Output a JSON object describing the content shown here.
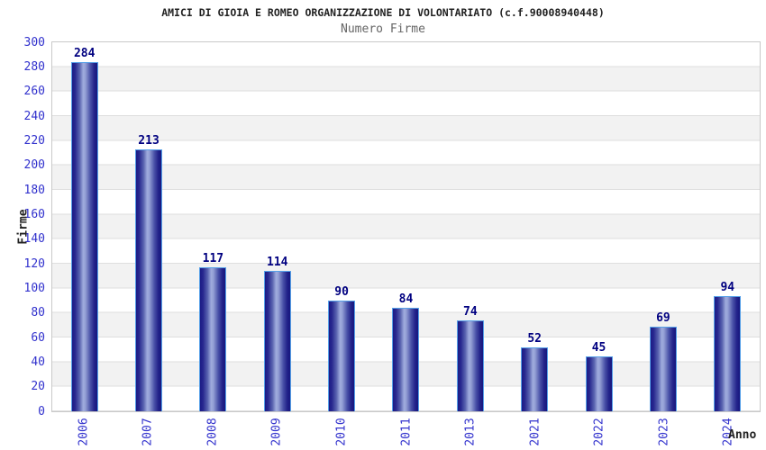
{
  "title": "AMICI DI GIOIA E ROMEO ORGANIZZAZIONE DI VOLONTARIATO (c.f.90008940448)",
  "subtitle": "Numero Firme",
  "chart_data": {
    "type": "bar",
    "title": "AMICI DI GIOIA E ROMEO ORGANIZZAZIONE DI VOLONTARIATO (c.f.90008940448)",
    "subtitle": "Numero Firme",
    "categories": [
      "2006",
      "2007",
      "2008",
      "2009",
      "2010",
      "2011",
      "2013",
      "2021",
      "2022",
      "2023",
      "2024"
    ],
    "values": [
      284,
      213,
      117,
      114,
      90,
      84,
      74,
      52,
      45,
      69,
      94
    ],
    "xlabel": "Anno",
    "ylabel": "Firme",
    "ylim": [
      0,
      300
    ],
    "ytick_step": 20,
    "grid": true,
    "legend_position": "none",
    "bar_value_labels_shown": true,
    "colors": {
      "tick_label": "#3232cd",
      "value_label": "#000080",
      "subtitle_text": "#666666",
      "band_stripe": "#f2f2f2",
      "gridline": "#dedede",
      "plot_border": "#c9c9c9",
      "bar_edge": "#56a0e8",
      "bar_dark": "#1b1b86",
      "bar_highlight": "#9fabdd"
    }
  }
}
